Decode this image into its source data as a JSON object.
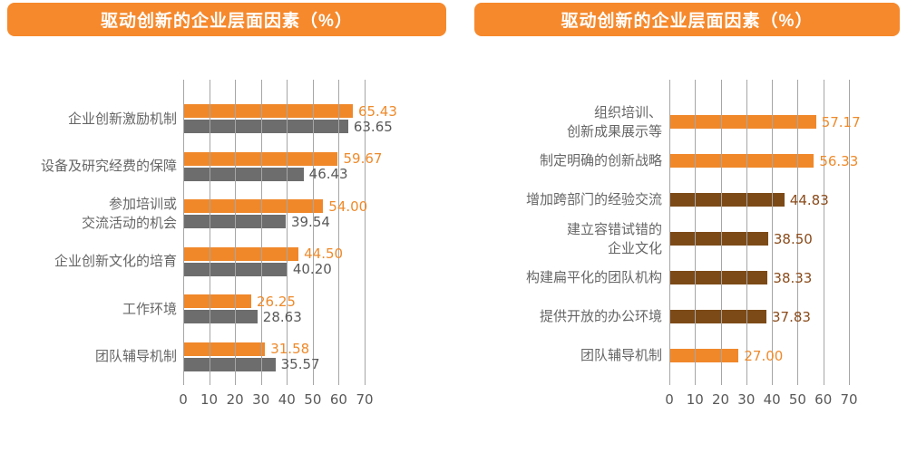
{
  "colors": {
    "banner": "#F6892C",
    "bar": {
      "orange": "#F0882A",
      "gray": "#6D6D6D",
      "brown": "#7C4A17"
    },
    "value_text": {
      "orange": "#EE8A2B",
      "gray": "#595959",
      "brown": "#8A4B1B"
    },
    "grid": "#A6A6A6",
    "axis_text": "#595959",
    "category_text": "#666666"
  },
  "chart_data": [
    {
      "type": "bar",
      "orientation": "horizontal",
      "title": "驱动创新的企业层面因素（%）",
      "categories": [
        "企业创新激励机制",
        "设备及研究经费的保障",
        "参加培训或\n交流活动的机会",
        "企业创新文化的培育",
        "工作环境",
        "团队辅导机制"
      ],
      "series": [
        {
          "name": "orange-series",
          "color_key": "orange",
          "values": [
            65.43,
            59.67,
            54.0,
            44.5,
            26.25,
            31.58
          ]
        },
        {
          "name": "gray-series",
          "color_key": "gray",
          "values": [
            63.65,
            46.43,
            39.54,
            40.2,
            28.63,
            35.57
          ]
        }
      ],
      "xlim": [
        0,
        70
      ],
      "xticks": [
        0,
        10,
        20,
        30,
        40,
        50,
        60,
        70
      ],
      "grid": true,
      "legend": false,
      "value_labels": true
    },
    {
      "type": "bar",
      "orientation": "horizontal",
      "title": "驱动创新的企业层面因素（%）",
      "categories": [
        "组织培训、\n创新成果展示等",
        "制定明确的创新战略",
        "增加跨部门的经验交流",
        "建立容错试错的\n企业文化",
        "构建扁平化的团队机构",
        "提供开放的办公环境",
        "团队辅导机制"
      ],
      "values": [
        57.17,
        56.33,
        44.83,
        38.5,
        38.33,
        37.83,
        27.0
      ],
      "bar_color_keys": [
        "orange",
        "orange",
        "brown",
        "brown",
        "brown",
        "brown",
        "orange"
      ],
      "xlim": [
        0,
        70
      ],
      "xticks": [
        0,
        10,
        20,
        30,
        40,
        50,
        60,
        70
      ],
      "grid": true,
      "legend": false,
      "value_labels": true
    }
  ]
}
